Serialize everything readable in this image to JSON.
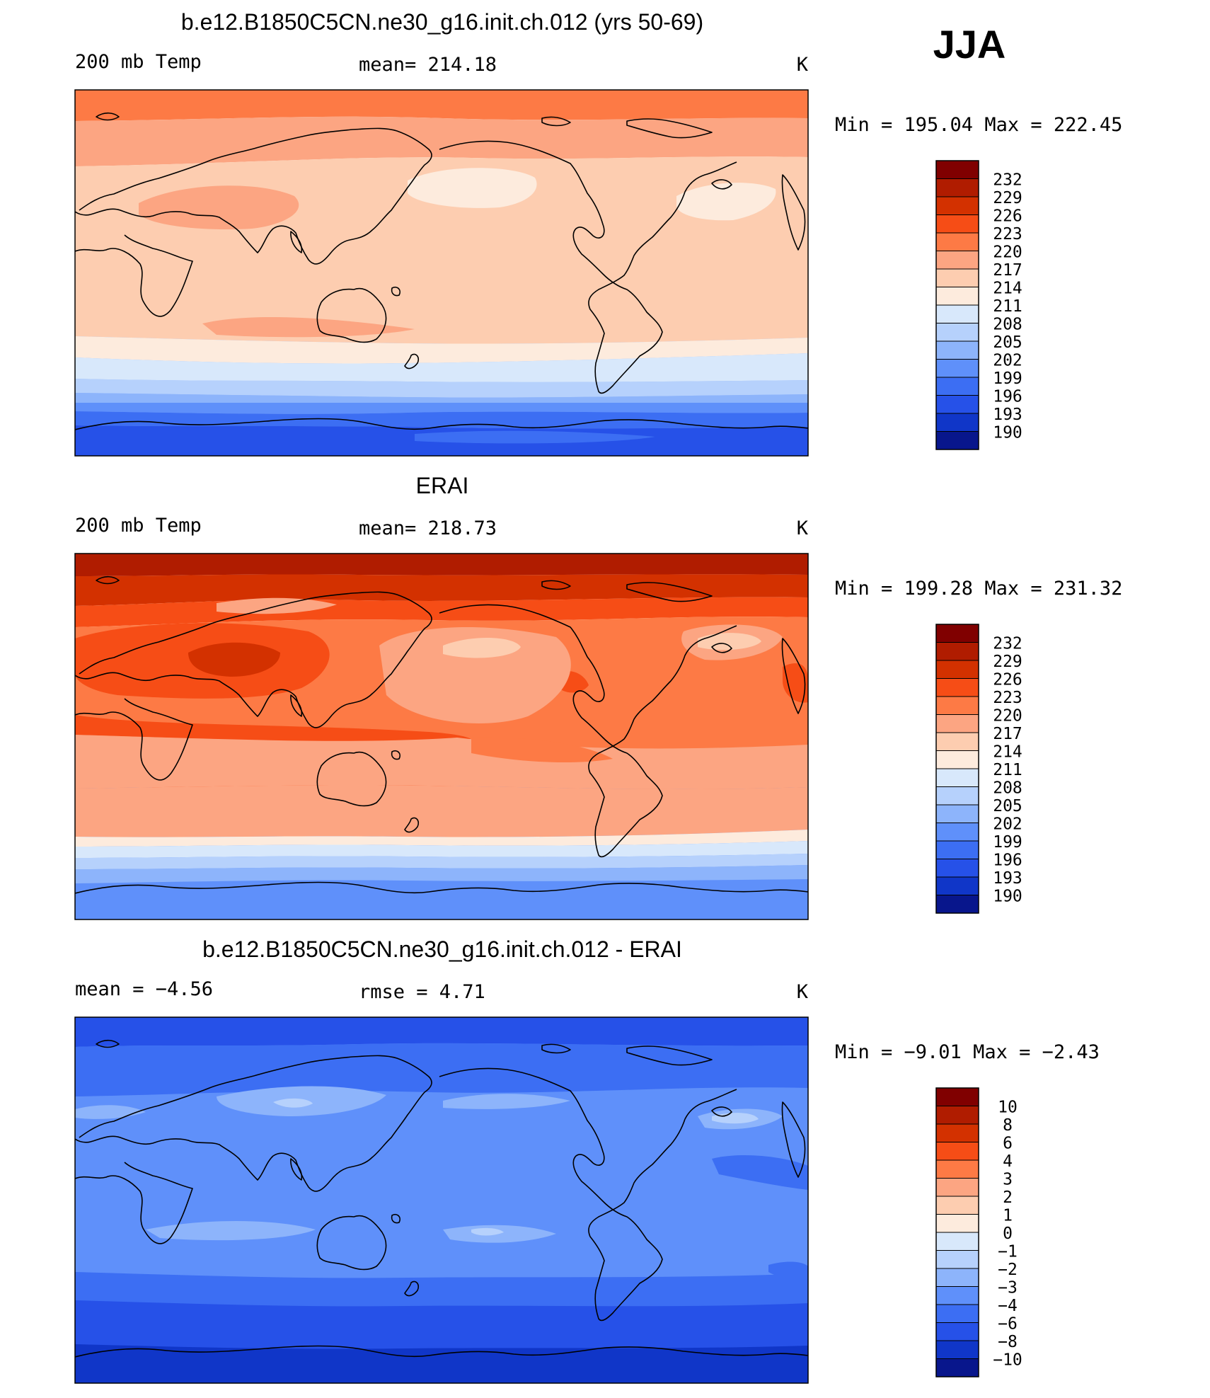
{
  "season": "JJA",
  "chart_data": [
    {
      "type": "heatmap",
      "title": "b.e12.B1850C5CN.ne30_g16.init.ch.012 (yrs 50-69)",
      "left_label": "200 mb Temp",
      "mean_text": "mean=  214.18",
      "units": "K",
      "minmax_text": "Min  =  195.04  Max  =  222.45",
      "field": "model",
      "colorbar": {
        "levels": [
          "232",
          "229",
          "226",
          "223",
          "220",
          "217",
          "214",
          "211",
          "208",
          "205",
          "202",
          "199",
          "196",
          "193",
          "190"
        ],
        "colors": [
          "#800000",
          "#b01c00",
          "#d33100",
          "#f64d16",
          "#fd7a45",
          "#fca582",
          "#fdcdb0",
          "#fdebdd",
          "#d8e8fb",
          "#b6d1fc",
          "#8db4fb",
          "#5f90fa",
          "#3c6ef3",
          "#2651e8",
          "#1036c8",
          "#08168c"
        ]
      }
    },
    {
      "type": "heatmap",
      "title": "ERAI",
      "left_label": "200 mb Temp",
      "mean_text": "mean=  218.73",
      "units": "K",
      "minmax_text": "Min  =  199.28  Max  =  231.32",
      "field": "obs",
      "colorbar": {
        "levels": [
          "232",
          "229",
          "226",
          "223",
          "220",
          "217",
          "214",
          "211",
          "208",
          "205",
          "202",
          "199",
          "196",
          "193",
          "190"
        ],
        "colors": [
          "#800000",
          "#b01c00",
          "#d33100",
          "#f64d16",
          "#fd7a45",
          "#fca582",
          "#fdcdb0",
          "#fdebdd",
          "#d8e8fb",
          "#b6d1fc",
          "#8db4fb",
          "#5f90fa",
          "#3c6ef3",
          "#2651e8",
          "#1036c8",
          "#08168c"
        ]
      }
    },
    {
      "type": "heatmap",
      "title": "b.e12.B1850C5CN.ne30_g16.init.ch.012 - ERAI",
      "left_label": "mean  =    −4.56",
      "mean_text": "rmse  =     4.71",
      "units": "K",
      "minmax_text": "Min  =   −9.01  Max  =   −2.43",
      "field": "diff",
      "colorbar": {
        "levels": [
          "10",
          "8",
          "6",
          "4",
          "3",
          "2",
          "1",
          "0",
          "−1",
          "−2",
          "−3",
          "−4",
          "−6",
          "−8",
          "−10"
        ],
        "colors": [
          "#800000",
          "#b01c00",
          "#d33100",
          "#f64d16",
          "#fd7a45",
          "#fca582",
          "#fdcdb0",
          "#fdebdd",
          "#d8e8fb",
          "#b6d1fc",
          "#8db4fb",
          "#5f90fa",
          "#3c6ef3",
          "#2651e8",
          "#1036c8",
          "#08168c"
        ]
      }
    }
  ]
}
